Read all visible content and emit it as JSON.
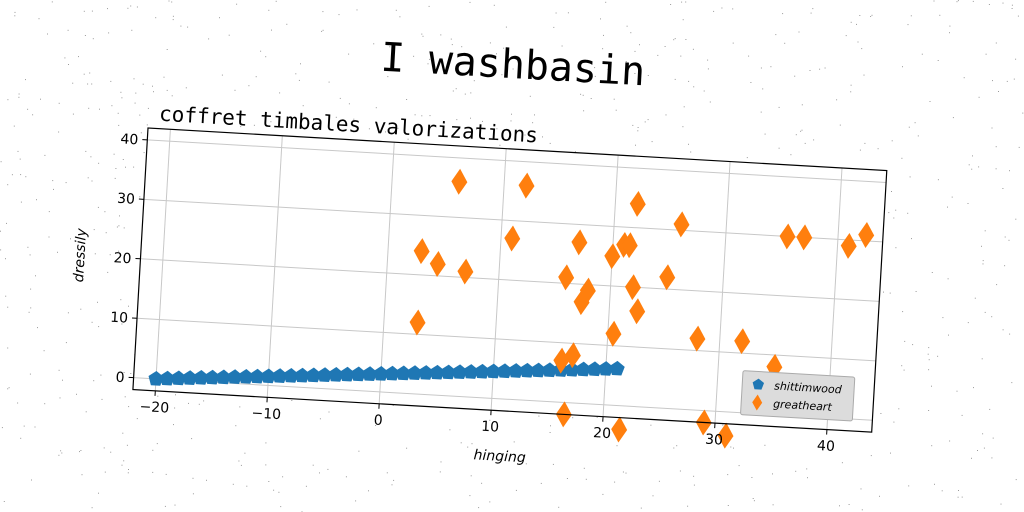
{
  "suptitle": "I washbasin",
  "chart_data": {
    "type": "scatter",
    "title": "coffret timbales valorizations",
    "xlabel": "hinging",
    "ylabel": "dressily",
    "xlim": [
      -22,
      44
    ],
    "ylim": [
      -2,
      42
    ],
    "x_ticks": [
      -20,
      -10,
      0,
      10,
      20,
      30,
      40
    ],
    "y_ticks": [
      0,
      10,
      20,
      30,
      40
    ],
    "grid": true,
    "legend_position": "bottom-right",
    "series": [
      {
        "name": "shittimwood",
        "marker": "pentagon",
        "color": "#1f77b4",
        "x": [
          -20,
          -19,
          -18,
          -17,
          -16,
          -15,
          -14,
          -13,
          -12,
          -11,
          -10,
          -9,
          -8,
          -7,
          -6,
          -5,
          -4,
          -3,
          -2,
          -1,
          0,
          1,
          2,
          3,
          4,
          5,
          6,
          7,
          8,
          9,
          10,
          11,
          12,
          13,
          14,
          15,
          16,
          17,
          18,
          19,
          20,
          21
        ],
        "y": [
          0.0,
          0.15,
          0.3,
          0.45,
          0.6,
          0.75,
          0.9,
          1.05,
          1.2,
          1.35,
          1.5,
          1.65,
          1.8,
          1.95,
          2.1,
          2.25,
          2.4,
          2.55,
          2.7,
          2.85,
          3.0,
          3.15,
          3.3,
          3.45,
          3.6,
          3.75,
          3.9,
          4.05,
          4.2,
          4.35,
          4.5,
          4.65,
          4.8,
          4.95,
          5.1,
          5.25,
          5.4,
          5.55,
          5.7,
          5.85,
          6.0,
          6.15
        ]
      },
      {
        "name": "greatheart",
        "marker": "thin_diamond",
        "color": "#ff7f0e",
        "x": [
          3,
          3,
          4.5,
          6,
          7,
          11,
          12,
          16,
          16,
          16.5,
          17,
          17,
          17.5,
          18,
          20,
          20.5,
          21,
          21.5,
          21.5,
          22,
          22,
          22.5,
          25,
          26,
          28,
          29,
          31,
          32,
          35,
          35.5,
          37,
          41,
          42.5
        ],
        "y": [
          24,
          12,
          22,
          36,
          21,
          27,
          36,
          21,
          7,
          -2,
          27,
          8,
          17,
          19,
          25,
          12,
          27,
          27,
          -4,
          20,
          34,
          16,
          22,
          31,
          12,
          -2,
          -4,
          12,
          8,
          30,
          30,
          29,
          31
        ]
      }
    ]
  }
}
